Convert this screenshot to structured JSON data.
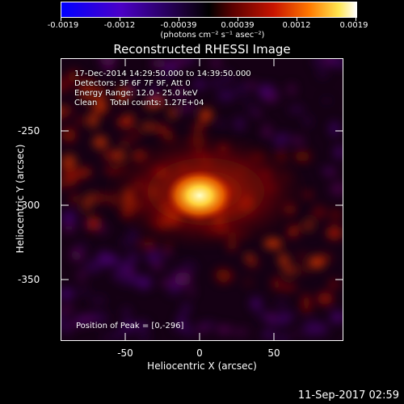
{
  "colorbar": {
    "ticks": [
      "-0.0019",
      "-0.0012",
      "-0.00039",
      "0.00039",
      "0.0012",
      "0.0019"
    ],
    "units": "(photons cm⁻² s⁻¹ asec⁻²)"
  },
  "title": "Reconstructed RHESSI Image",
  "info": {
    "time_range": "17-Dec-2014 14:29:50.000 to 14:39:50.000",
    "detectors": "Detectors: 3F 6F 7F 9F, Att 0",
    "energy_range": "Energy Range: 12.0 - 25.0 keV",
    "method": "Clean     Total counts: 1.27E+04"
  },
  "peak_label": "Position of Peak = [0,-296]",
  "axes": {
    "x_ticks": [
      "-50",
      "0",
      "50"
    ],
    "y_ticks": [
      "-250",
      "-300",
      "-350"
    ],
    "xlabel": "Heliocentric X (arcsec)",
    "ylabel": "Heliocentric Y (arcsec)"
  },
  "timestamp": "11-Sep-2017 02:59",
  "colors": {
    "frame": "#ffffff",
    "background": "#000000"
  }
}
